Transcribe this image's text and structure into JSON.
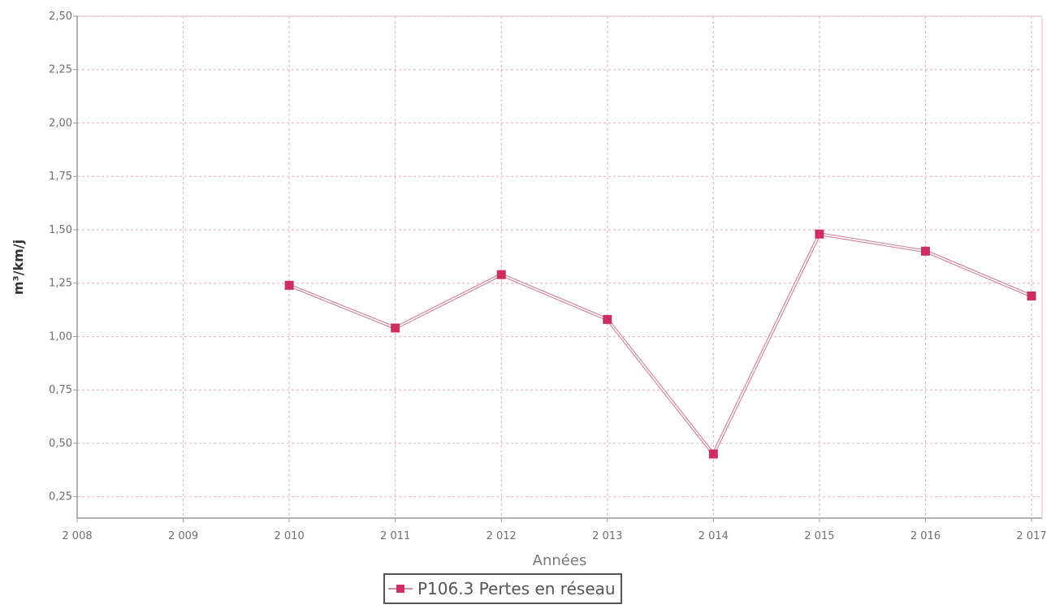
{
  "chart_data": {
    "type": "line",
    "xlabel": "Années",
    "ylabel": "m³/km/j",
    "x": [
      "2 008",
      "2 009",
      "2 010",
      "2 011",
      "2 012",
      "2 013",
      "2 014",
      "2 015",
      "2 016",
      "2 017"
    ],
    "series": [
      {
        "name": "P106.3 Pertes en réseau",
        "values": [
          null,
          null,
          1.24,
          1.04,
          1.29,
          1.08,
          0.45,
          1.48,
          1.4,
          1.19
        ]
      }
    ],
    "yticks": [
      "0,25",
      "0,50",
      "0,75",
      "1,00",
      "1,25",
      "1,50",
      "1,75",
      "2,00",
      "2,25",
      "2,50"
    ],
    "ylim": [
      0.15,
      2.5
    ],
    "grid": true,
    "legend_position": "bottom-center",
    "colors": {
      "series": "#cc2f5f",
      "line": "#d08aa0",
      "grid": "#e7b9c8",
      "axis": "#9a9a9a"
    }
  }
}
